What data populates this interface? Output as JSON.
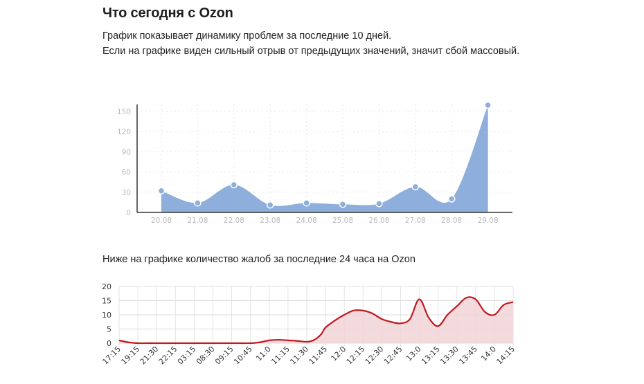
{
  "header": {
    "title": "Что сегодня с Ozon",
    "line1": "График показывает динамику проблем за последние 10 дней.",
    "line2": "Если на графике виден сильный отрыв от предыдущих значений, значит сбой массовый."
  },
  "section2": {
    "title": "Ниже на графике количество жалоб за последние 24 часа на Ozon"
  },
  "colors": {
    "area1": "#8eaedb",
    "point1": "#8eaedb",
    "line2": "#c0191f",
    "area2": "#f1d4d6"
  },
  "chart_data": [
    {
      "type": "area",
      "title": "",
      "categories": [
        "20.08",
        "21.08",
        "22.08",
        "23.08",
        "24.08",
        "25.08",
        "26.08",
        "27.08",
        "28.08",
        "29.08"
      ],
      "values": [
        32,
        14,
        41,
        11,
        14,
        12,
        13,
        38,
        20,
        159
      ],
      "yticks": [
        0,
        30,
        60,
        90,
        120,
        150
      ],
      "ylim": [
        0,
        160
      ],
      "grid": true
    },
    {
      "type": "area",
      "title": "Ниже на графике количество жалоб за последние 24 часа на Ozon",
      "categories": [
        "17:15",
        "19:15",
        "21:30",
        "22:15",
        "03:15",
        "08:30",
        "09:15",
        "10:45",
        "11:0",
        "11:15",
        "11:30",
        "11:45",
        "12:0",
        "12:15",
        "12:30",
        "12:45",
        "13:0",
        "13:15",
        "13:30",
        "13:45",
        "14:0",
        "14:15"
      ],
      "x": [
        0,
        1,
        2,
        3,
        4,
        5,
        6,
        7,
        8,
        9,
        10,
        11,
        12,
        13,
        14,
        15,
        16,
        17,
        18,
        19,
        20,
        20.7,
        21.5,
        22,
        23,
        24,
        25,
        26,
        27,
        28,
        29,
        30,
        31,
        32,
        33,
        34,
        35,
        36,
        37,
        38,
        39,
        40,
        41,
        42
      ],
      "values": [
        1,
        0.3,
        0,
        0,
        0,
        0,
        0,
        0,
        0,
        0,
        0,
        0,
        0,
        0,
        0,
        0.3,
        1,
        1.2,
        1,
        0.8,
        0.5,
        1,
        3,
        5.5,
        8,
        10,
        11.5,
        11.5,
        10.5,
        8.5,
        7.5,
        7,
        8.5,
        15.5,
        9,
        6,
        10,
        13,
        16,
        15.5,
        11,
        10,
        13.5,
        14.5
      ],
      "yticks": [
        0,
        5,
        10,
        15,
        20
      ],
      "ylim": [
        0,
        20
      ],
      "grid": true
    }
  ]
}
